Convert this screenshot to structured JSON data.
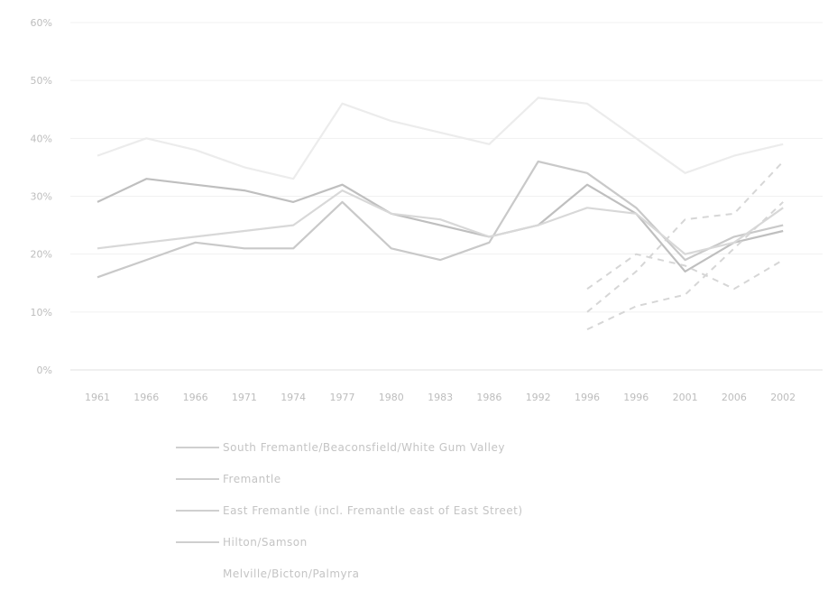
{
  "chart_data": {
    "type": "line",
    "categories": [
      "1961",
      "1966",
      "1966",
      "1971",
      "1974",
      "1977",
      "1980",
      "1983",
      "1986",
      "1992",
      "1996",
      "1996",
      "2001",
      "2006",
      "2002"
    ],
    "y_ticks": [
      "0%",
      "10%",
      "20%",
      "30%",
      "40%",
      "50%",
      "60%"
    ],
    "ylim": [
      0,
      60
    ],
    "grid": true,
    "legend_position": "bottom",
    "series": [
      {
        "name": "South Fremantle/Beaconsfield/White Gum Valley",
        "color": "#c9c9c9",
        "dash": false,
        "values": [
          16,
          19,
          22,
          21,
          21,
          29,
          21,
          19,
          22,
          36,
          34,
          28,
          19,
          23,
          25
        ]
      },
      {
        "name": "Fremantle",
        "color": "#bfbfbf",
        "dash": false,
        "values": [
          29,
          33,
          32,
          31,
          29,
          32,
          27,
          25,
          23,
          25,
          32,
          27,
          17,
          22,
          24
        ]
      },
      {
        "name": "East Fremantle (incl. Fremantle east of East Street)",
        "color": "#ececec",
        "dash": false,
        "values": [
          37,
          40,
          38,
          35,
          33,
          46,
          43,
          41,
          39,
          47,
          46,
          40,
          34,
          37,
          39
        ]
      },
      {
        "name": "Hilton/Samson",
        "color": "#d8d8d8",
        "dash": false,
        "values": [
          21,
          22,
          23,
          24,
          25,
          31,
          27,
          26,
          23,
          25,
          28,
          27,
          20,
          22,
          28
        ]
      },
      {
        "name": "Melville/Bicton/Palmyra",
        "color": "#d6d6d6",
        "dash": true,
        "values": [
          null,
          null,
          null,
          null,
          null,
          null,
          null,
          null,
          null,
          null,
          10,
          17,
          26,
          27,
          36
        ]
      },
      {
        "name": "",
        "color": "#d6d6d6",
        "dash": true,
        "values": [
          null,
          null,
          null,
          null,
          null,
          null,
          null,
          null,
          null,
          null,
          7,
          11,
          13,
          21,
          29
        ]
      },
      {
        "name": "",
        "color": "#d6d6d6",
        "dash": true,
        "values": [
          null,
          null,
          null,
          null,
          null,
          null,
          null,
          null,
          null,
          null,
          14,
          20,
          18,
          14,
          19
        ]
      }
    ]
  }
}
